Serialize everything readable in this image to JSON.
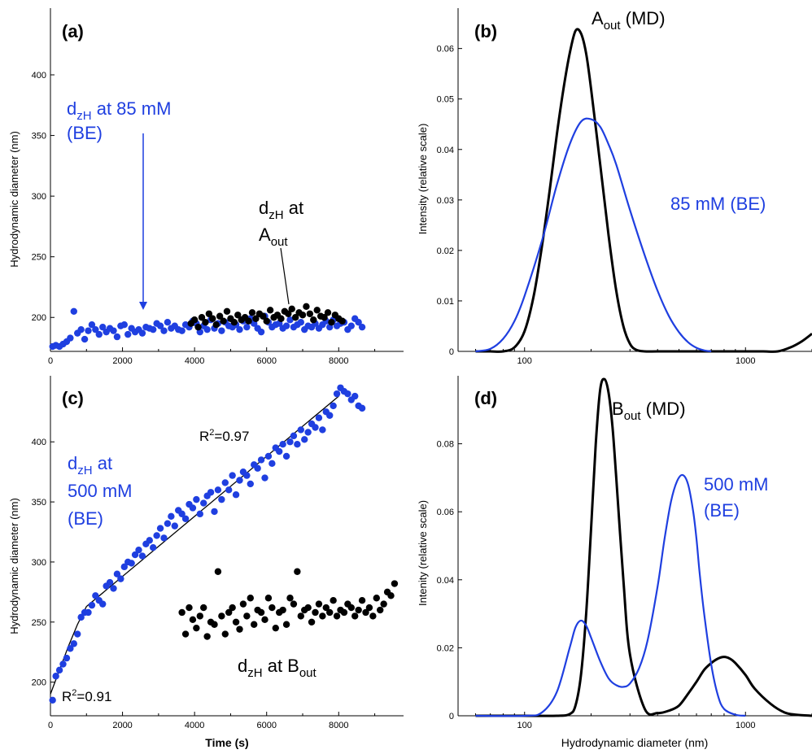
{
  "colors": {
    "blue": "#1f3fe0",
    "black": "#000000"
  },
  "chart_data": [
    {
      "id": "a",
      "type": "scatter",
      "panel_label": "(a)",
      "ylabel": "Hydrodynamic diameter (nm)",
      "xlabel": "",
      "xlim": [
        0,
        9800
      ],
      "ylim": [
        172,
        455
      ],
      "xticks": [
        "0",
        "2000",
        "4000",
        "6000",
        "8000"
      ],
      "yticks": [
        "200",
        "250",
        "300",
        "350",
        "400"
      ],
      "annotations": [
        {
          "main": "d",
          "sub": "zH",
          "rest": " at 85 mM",
          "line2": "(BE)",
          "color": "blue"
        },
        {
          "main": "d",
          "sub": "zH",
          "rest": " at",
          "line2_main": "A",
          "line2_sub": "out",
          "color": "black"
        }
      ],
      "series": [
        {
          "color": "blue",
          "x": [
            60,
            150,
            250,
            350,
            450,
            550,
            650,
            750,
            850,
            950,
            1050,
            1150,
            1250,
            1350,
            1450,
            1550,
            1650,
            1750,
            1850,
            1950,
            2050,
            2150,
            2250,
            2350,
            2450,
            2550,
            2650,
            2750,
            2850,
            2950,
            3050,
            3150,
            3250,
            3350,
            3450,
            3550,
            3650,
            3750,
            3850,
            3950,
            4050,
            4150,
            4250,
            4350,
            4450,
            4550,
            4650,
            4750,
            4850,
            4950,
            5050,
            5150,
            5250,
            5350,
            5450,
            5550,
            5650,
            5750,
            5850,
            5950,
            6050,
            6150,
            6250,
            6350,
            6450,
            6550,
            6650,
            6750,
            6850,
            6950,
            7050,
            7150,
            7250,
            7350,
            7450,
            7550,
            7650,
            7750,
            7850,
            7950,
            8050,
            8150,
            8250,
            8350,
            8450,
            8550,
            8650
          ],
          "y": [
            176,
            177,
            176,
            178,
            180,
            183,
            205,
            187,
            190,
            182,
            189,
            194,
            190,
            186,
            192,
            188,
            191,
            189,
            184,
            193,
            194,
            186,
            191,
            188,
            190,
            187,
            192,
            191,
            190,
            195,
            193,
            189,
            196,
            191,
            193,
            190,
            189,
            194,
            192,
            197,
            195,
            188,
            193,
            190,
            198,
            191,
            195,
            189,
            196,
            193,
            192,
            194,
            190,
            197,
            192,
            199,
            195,
            191,
            188,
            201,
            196,
            192,
            194,
            195,
            191,
            193,
            198,
            192,
            194,
            196,
            190,
            193,
            192,
            195,
            191,
            194,
            197,
            192,
            198,
            193,
            195,
            196,
            190,
            193,
            199,
            196,
            192
          ]
        },
        {
          "color": "black",
          "x": [
            3900,
            4000,
            4100,
            4200,
            4300,
            4400,
            4500,
            4600,
            4700,
            4800,
            4900,
            5000,
            5100,
            5200,
            5300,
            5400,
            5500,
            5600,
            5700,
            5800,
            5900,
            6000,
            6100,
            6200,
            6300,
            6400,
            6500,
            6600,
            6700,
            6800,
            6900,
            7000,
            7100,
            7200,
            7300,
            7400,
            7500,
            7600,
            7700,
            7800,
            7900,
            8000,
            8100
          ],
          "y": [
            195,
            198,
            192,
            200,
            196,
            203,
            199,
            194,
            201,
            197,
            205,
            199,
            196,
            202,
            198,
            200,
            197,
            204,
            199,
            203,
            201,
            197,
            206,
            200,
            202,
            199,
            205,
            203,
            207,
            200,
            204,
            202,
            209,
            203,
            198,
            206,
            201,
            200,
            204,
            196,
            202,
            199,
            197
          ]
        }
      ]
    },
    {
      "id": "b",
      "type": "line",
      "panel_label": "(b)",
      "ylabel": "Intensity (relative scale)",
      "xlabel": "",
      "xscale": "log",
      "xlim": [
        50,
        2000
      ],
      "ylim": [
        0,
        0.068
      ],
      "xticks": [
        "100",
        "1000"
      ],
      "yticks": [
        "0",
        "0.01",
        "0.02",
        "0.03",
        "0.04",
        "0.05",
        "0.06"
      ],
      "annotations": [
        {
          "main": "A",
          "sub": "out",
          "rest": " (MD)",
          "color": "black"
        },
        {
          "main": "85 mM (BE)",
          "sub": "",
          "rest": "",
          "color": "blue"
        }
      ],
      "series": [
        {
          "color": "black",
          "x": [
            60,
            70,
            80,
            90,
            100,
            110,
            120,
            130,
            140,
            150,
            160,
            170,
            180,
            190,
            200,
            220,
            240,
            260,
            280,
            300,
            320,
            350,
            400,
            500,
            700,
            1000,
            1200,
            1400,
            1600,
            1800,
            2000
          ],
          "y": [
            0,
            0,
            0,
            0.0008,
            0.004,
            0.011,
            0.021,
            0.032,
            0.043,
            0.052,
            0.059,
            0.0635,
            0.063,
            0.059,
            0.052,
            0.037,
            0.023,
            0.012,
            0.005,
            0.0015,
            0.0003,
            0,
            0,
            0,
            0,
            0,
            0,
            0,
            0.0008,
            0.002,
            0.0035
          ]
        },
        {
          "color": "blue",
          "x": [
            60,
            70,
            80,
            90,
            100,
            120,
            140,
            160,
            180,
            200,
            220,
            240,
            260,
            300,
            350,
            400,
            450,
            500,
            550,
            600,
            650,
            700
          ],
          "y": [
            0,
            0.0005,
            0.0025,
            0.006,
            0.011,
            0.022,
            0.033,
            0.041,
            0.0455,
            0.046,
            0.0445,
            0.041,
            0.037,
            0.028,
            0.019,
            0.012,
            0.007,
            0.0038,
            0.0018,
            0.0007,
            0.0002,
            0
          ]
        }
      ]
    },
    {
      "id": "c",
      "type": "scatter",
      "panel_label": "(c)",
      "ylabel": "Hydrodynamic diameter (nm)",
      "xlabel": "Time (s)",
      "xlim": [
        0,
        9800
      ],
      "ylim": [
        172,
        455
      ],
      "xticks": [
        "0",
        "2000",
        "4000",
        "6000",
        "8000"
      ],
      "yticks": [
        "200",
        "250",
        "300",
        "350",
        "400"
      ],
      "annotations": [
        {
          "main": "d",
          "sub": "zH",
          "rest": " at",
          "line2": "500 mM",
          "line3": "(BE)",
          "color": "blue"
        },
        {
          "main": "d",
          "sub": "zH",
          "rest": " at B",
          "rest_sub": "out",
          "color": "black"
        },
        {
          "main": "R",
          "sup": "2",
          "rest": "=0.97",
          "color": "black"
        },
        {
          "main": "R",
          "sup": "2",
          "rest": "=0.91",
          "color": "black"
        }
      ],
      "fit_lines": [
        {
          "x": [
            0,
            250,
            500,
            750,
            1000
          ],
          "y": [
            190,
            210,
            230,
            248,
            263
          ]
        },
        {
          "x": [
            1000,
            8000
          ],
          "y": [
            263,
            438
          ]
        }
      ],
      "series": [
        {
          "color": "blue",
          "x": [
            60,
            150,
            250,
            350,
            450,
            550,
            650,
            750,
            850,
            950,
            1050,
            1150,
            1250,
            1350,
            1450,
            1550,
            1650,
            1750,
            1850,
            1950,
            2050,
            2150,
            2250,
            2350,
            2450,
            2550,
            2650,
            2750,
            2850,
            2950,
            3050,
            3150,
            3250,
            3350,
            3450,
            3550,
            3650,
            3750,
            3850,
            3950,
            4050,
            4150,
            4250,
            4350,
            4450,
            4550,
            4650,
            4750,
            4850,
            4950,
            5050,
            5150,
            5250,
            5350,
            5450,
            5550,
            5650,
            5750,
            5850,
            5950,
            6050,
            6150,
            6250,
            6350,
            6450,
            6550,
            6650,
            6750,
            6850,
            6950,
            7050,
            7150,
            7250,
            7350,
            7450,
            7550,
            7650,
            7750,
            7850,
            7950,
            8050,
            8150,
            8250,
            8350,
            8450,
            8550,
            8650
          ],
          "y": [
            185,
            205,
            210,
            215,
            220,
            228,
            232,
            240,
            254,
            258,
            258,
            264,
            272,
            268,
            265,
            280,
            283,
            278,
            290,
            286,
            296,
            300,
            299,
            306,
            310,
            305,
            315,
            318,
            312,
            322,
            328,
            320,
            332,
            338,
            330,
            343,
            340,
            336,
            348,
            345,
            352,
            340,
            349,
            355,
            358,
            342,
            360,
            352,
            366,
            360,
            372,
            356,
            368,
            375,
            372,
            365,
            381,
            378,
            385,
            370,
            388,
            382,
            395,
            392,
            398,
            388,
            400,
            405,
            398,
            410,
            402,
            408,
            415,
            412,
            420,
            410,
            425,
            422,
            430,
            440,
            445,
            442,
            440,
            435,
            438,
            430,
            428
          ]
        },
        {
          "color": "black",
          "x": [
            3650,
            3750,
            3850,
            3950,
            4050,
            4150,
            4250,
            4350,
            4450,
            4550,
            4650,
            4750,
            4850,
            4950,
            5050,
            5150,
            5250,
            5350,
            5450,
            5550,
            5650,
            5750,
            5850,
            5950,
            6050,
            6150,
            6250,
            6350,
            6450,
            6550,
            6650,
            6750,
            6850,
            6950,
            7050,
            7150,
            7250,
            7350,
            7450,
            7550,
            7650,
            7750,
            7850,
            7950,
            8050,
            8150,
            8250,
            8350,
            8450,
            8550,
            8650,
            8750,
            8850,
            8950,
            9050,
            9150,
            9250,
            9350,
            9450,
            9550
          ],
          "y": [
            258,
            240,
            262,
            252,
            245,
            255,
            262,
            238,
            250,
            248,
            292,
            255,
            240,
            258,
            262,
            250,
            244,
            265,
            255,
            270,
            248,
            260,
            258,
            252,
            270,
            262,
            245,
            258,
            260,
            248,
            270,
            265,
            292,
            255,
            260,
            262,
            250,
            258,
            265,
            255,
            262,
            258,
            268,
            255,
            260,
            258,
            265,
            262,
            255,
            260,
            268,
            258,
            262,
            255,
            270,
            260,
            265,
            275,
            272,
            282
          ]
        }
      ]
    },
    {
      "id": "d",
      "type": "line",
      "panel_label": "(d)",
      "ylabel": "Intenity (relative scale)",
      "xlabel": "Hydrodynamic diameter (nm)",
      "xscale": "log",
      "xlim": [
        50,
        2000
      ],
      "ylim": [
        0,
        0.1
      ],
      "xticks": [
        "100",
        "1000"
      ],
      "yticks": [
        "0",
        "0.02",
        "0.04",
        "0.06",
        "0.08"
      ],
      "annotations": [
        {
          "main": "B",
          "sub": "out",
          "rest": " (MD)",
          "color": "black"
        },
        {
          "main": "500 mM",
          "line2": "(BE)",
          "color": "blue"
        }
      ],
      "series": [
        {
          "color": "black",
          "x": [
            60,
            100,
            140,
            160,
            170,
            180,
            190,
            200,
            210,
            220,
            230,
            240,
            250,
            260,
            280,
            300,
            350,
            400,
            450,
            500,
            550,
            600,
            650,
            700,
            750,
            800,
            850,
            900,
            1000,
            1100,
            1300,
            1500,
            1700,
            2000
          ],
          "y": [
            0,
            0,
            0,
            0.0005,
            0.003,
            0.012,
            0.03,
            0.055,
            0.08,
            0.096,
            0.099,
            0.095,
            0.085,
            0.07,
            0.04,
            0.018,
            0.002,
            0.0008,
            0.0015,
            0.003,
            0.0065,
            0.01,
            0.0135,
            0.0155,
            0.0168,
            0.0173,
            0.0168,
            0.0155,
            0.012,
            0.008,
            0.0035,
            0.001,
            0.0003,
            0
          ]
        },
        {
          "color": "blue",
          "x": [
            60,
            100,
            120,
            140,
            160,
            170,
            180,
            190,
            200,
            220,
            240,
            260,
            280,
            300,
            330,
            360,
            400,
            430,
            460,
            490,
            520,
            550,
            580,
            600,
            620,
            650,
            700,
            750,
            800,
            900,
            1000
          ],
          "y": [
            0,
            0,
            0.001,
            0.007,
            0.02,
            0.026,
            0.028,
            0.0265,
            0.023,
            0.016,
            0.011,
            0.009,
            0.0085,
            0.0095,
            0.014,
            0.022,
            0.038,
            0.052,
            0.063,
            0.069,
            0.0708,
            0.068,
            0.06,
            0.052,
            0.042,
            0.03,
            0.015,
            0.006,
            0.002,
            0.0003,
            0
          ]
        }
      ]
    }
  ]
}
